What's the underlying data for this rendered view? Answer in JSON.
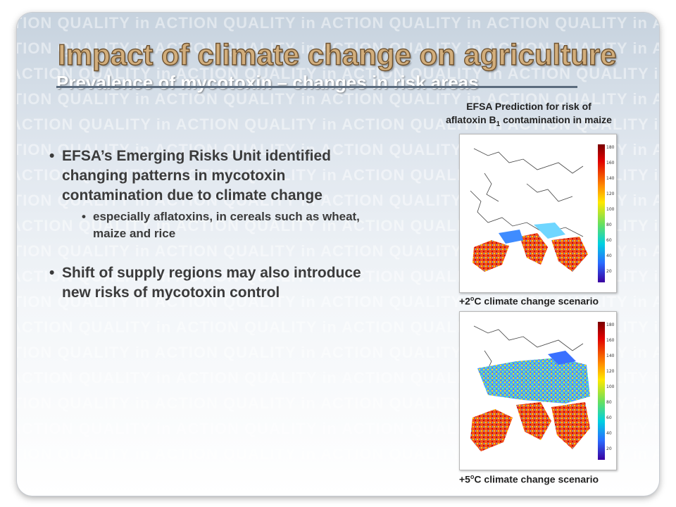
{
  "title": "Impact of climate change on agriculture",
  "subtitle": "Prevalence of mycotoxin – changes in risk areas",
  "watermark": "ACTION QUALITY in ACTION QUALITY in ACTION QUALITY in ACTION QUALITY in ACTION QUALITY in ACTION",
  "bullets": [
    {
      "text": "EFSA’s Emerging Risks Unit identified changing patterns in mycotoxin contamination due to climate change",
      "sub": [
        "especially aflatoxins, in cereals such as wheat, maize and rice"
      ]
    },
    {
      "text": "Shift of supply regions may also introduce new risks of mycotoxin control",
      "sub": []
    }
  ],
  "figure": {
    "caption_line1": "EFSA Prediction for risk of",
    "caption_line2_prefix": "aflatoxin B",
    "caption_line2_sub": "1",
    "caption_line2_suffix": " contamination in maize",
    "maps": [
      {
        "caption_prefix": "+2",
        "caption_sup": "o",
        "caption_suffix": "C climate change scenario",
        "scale_ticks": [
          "180",
          "160",
          "140",
          "120",
          "100",
          "80",
          "60",
          "40",
          "20"
        ]
      },
      {
        "caption_prefix": "+5",
        "caption_sup": "o",
        "caption_suffix": "C climate change scenario",
        "scale_ticks": [
          "180",
          "160",
          "140",
          "120",
          "100",
          "80",
          "60",
          "40",
          "20"
        ]
      }
    ]
  },
  "colors": {
    "title_fill": "#d2ae7c",
    "title_outline": "#6e5230",
    "body_text": "#3b3b3b"
  }
}
